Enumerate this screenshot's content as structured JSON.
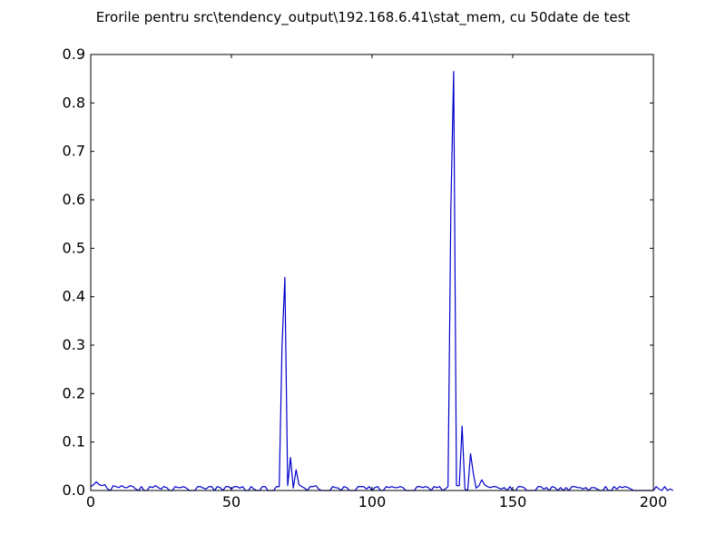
{
  "chart_data": {
    "type": "line",
    "title": "Erorile pentru src\\tendency_output\\192.168.6.41\\stat_mem, cu 50date de test",
    "xlabel": "",
    "ylabel": "",
    "xlim": [
      0,
      200
    ],
    "ylim": [
      0,
      0.9
    ],
    "xticks": [
      0,
      50,
      100,
      150,
      200
    ],
    "yticks": [
      0.0,
      0.1,
      0.2,
      0.3,
      0.4,
      0.5,
      0.6,
      0.7,
      0.8,
      0.9
    ],
    "xtick_labels": [
      "0",
      "50",
      "100",
      "150",
      "200"
    ],
    "ytick_labels": [
      "0.0",
      "0.1",
      "0.2",
      "0.3",
      "0.4",
      "0.5",
      "0.6",
      "0.7",
      "0.8",
      "0.9"
    ],
    "grid": false,
    "colors": {
      "line": "#0000cc",
      "frame": "#000000",
      "background": "#ffffff"
    },
    "series": [
      {
        "values": [
          0.008,
          0.012,
          0.018,
          0.012,
          0.01,
          0.012,
          0.003,
          0.0,
          0.01,
          0.008,
          0.006,
          0.01,
          0.006,
          0.006,
          0.01,
          0.008,
          0.003,
          0.0,
          0.008,
          0.0,
          0.0,
          0.008,
          0.006,
          0.01,
          0.006,
          0.003,
          0.008,
          0.006,
          0.0,
          0.0,
          0.008,
          0.006,
          0.006,
          0.008,
          0.005,
          0.0,
          0.0,
          0.0,
          0.008,
          0.008,
          0.005,
          0.003,
          0.008,
          0.008,
          0.0,
          0.008,
          0.006,
          0.0,
          0.008,
          0.008,
          0.003,
          0.008,
          0.008,
          0.005,
          0.008,
          0.0,
          0.0,
          0.008,
          0.003,
          0.0,
          0.0,
          0.008,
          0.008,
          0.0,
          0.0,
          0.0,
          0.008,
          0.008,
          0.3,
          0.44,
          0.01,
          0.068,
          0.005,
          0.043,
          0.012,
          0.008,
          0.005,
          0.0,
          0.008,
          0.008,
          0.01,
          0.003,
          0.0,
          0.0,
          0.0,
          0.0,
          0.008,
          0.006,
          0.005,
          0.0,
          0.008,
          0.006,
          0.0,
          0.0,
          0.0,
          0.008,
          0.008,
          0.008,
          0.003,
          0.008,
          0.0,
          0.006,
          0.008,
          0.0,
          0.0,
          0.008,
          0.006,
          0.008,
          0.006,
          0.006,
          0.008,
          0.006,
          0.0,
          0.0,
          0.0,
          0.0,
          0.008,
          0.008,
          0.006,
          0.008,
          0.006,
          0.0,
          0.008,
          0.006,
          0.008,
          0.0,
          0.003,
          0.008,
          0.58,
          0.865,
          0.01,
          0.01,
          0.133,
          0.003,
          0.0,
          0.076,
          0.035,
          0.005,
          0.01,
          0.022,
          0.012,
          0.008,
          0.006,
          0.008,
          0.008,
          0.005,
          0.003,
          0.006,
          0.0,
          0.008,
          0.0,
          0.0,
          0.008,
          0.008,
          0.006,
          0.0,
          0.0,
          0.0,
          0.0,
          0.008,
          0.008,
          0.003,
          0.006,
          0.0,
          0.008,
          0.006,
          0.0,
          0.006,
          0.0,
          0.006,
          0.0,
          0.008,
          0.008,
          0.006,
          0.006,
          0.003,
          0.006,
          0.0,
          0.006,
          0.006,
          0.003,
          0.0,
          0.0,
          0.008,
          0.0,
          0.0,
          0.008,
          0.003,
          0.008,
          0.006,
          0.008,
          0.006,
          0.003,
          0.0,
          0.0,
          0.0,
          0.0,
          0.0,
          0.0,
          0.0,
          0.0,
          0.008,
          0.003,
          0.0,
          0.008,
          0.0,
          0.003,
          0.0
        ]
      }
    ]
  }
}
